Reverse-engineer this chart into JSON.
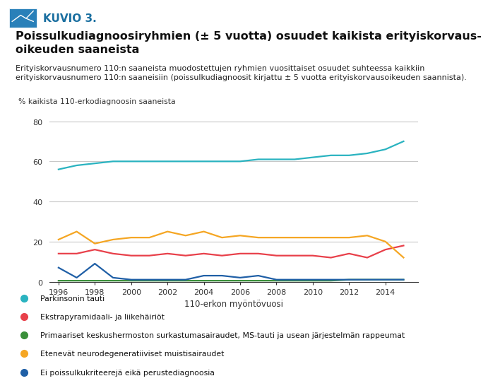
{
  "years": [
    1996,
    1997,
    1998,
    1999,
    2000,
    2001,
    2002,
    2003,
    2004,
    2005,
    2006,
    2007,
    2008,
    2009,
    2010,
    2011,
    2012,
    2013,
    2014,
    2015
  ],
  "parkinson": [
    56,
    58,
    59,
    60,
    60,
    60,
    60,
    60,
    60,
    60,
    60,
    61,
    61,
    61,
    62,
    63,
    63,
    64,
    66,
    70
  ],
  "ekstrapyramidaali": [
    14,
    14,
    16,
    14,
    13,
    13,
    14,
    13,
    14,
    13,
    14,
    14,
    13,
    13,
    13,
    12,
    14,
    12,
    16,
    18
  ],
  "primaariset": [
    0.5,
    0.5,
    0.5,
    0.5,
    0.5,
    0.5,
    0.5,
    0.5,
    0.5,
    0.5,
    0.5,
    0.5,
    0.5,
    0.5,
    0.5,
    0.5,
    1,
    1,
    1,
    1
  ],
  "etenevat": [
    21,
    25,
    19,
    21,
    22,
    22,
    25,
    23,
    25,
    22,
    23,
    22,
    22,
    22,
    22,
    22,
    22,
    23,
    20,
    12
  ],
  "ei_poissulku": [
    7,
    2,
    9,
    2,
    1,
    1,
    1,
    1,
    3,
    3,
    2,
    3,
    1,
    1,
    1,
    1,
    1,
    1,
    1,
    1
  ],
  "color_parkinson": "#2ab3c0",
  "color_ekstrapyramidaali": "#e8404a",
  "color_primaariset": "#3a8f3a",
  "color_etenevat": "#f5a623",
  "color_ei_poissulku": "#1f5fa6",
  "ylabel": "% kaikista 110-erkodiagnoosin saaneista",
  "xlabel": "110-erkon myöntövuosi",
  "ylim": [
    0,
    85
  ],
  "yticks": [
    0,
    20,
    40,
    60,
    80
  ],
  "xlim": [
    1995.5,
    2015.8
  ],
  "xticks": [
    1996,
    1998,
    2000,
    2002,
    2004,
    2006,
    2008,
    2010,
    2012,
    2014
  ],
  "legend_labels": [
    "Parkinsonin tauti",
    "Ekstrapyramidaali- ja liikehäiriöt",
    "Primaariset keskushermoston surkastumasairaudet, MS-tauti ja usean järjestelmän rappeumat",
    "Etenevät neurodegeneratiiviset muistisairaudet",
    "Ei poissulkukriteerejä eikä perustediagnoosia"
  ],
  "header_text": "KUVIO 3.",
  "title_text": "Poissulkudiagnoosiryhmien (± 5 vuotta) osuudet kaikista erityiskorvaus-\noikeuden saaneista",
  "subtitle_text": "Erityiskorvausnumero 110:n saaneista muodostettujen ryhmien vuosittaiset osuudet suhteessa kaikkiin erityiskorvausnumero 110:n saaneisiin (poissulkudiagnoosit kirjattu ± 5 vuotta erityiskorvausoikeuden saannista).",
  "background_color": "#ffffff",
  "grid_color": "#c8c8c8",
  "header_bg": "#d0e8f0",
  "header_color": "#1a6fa0"
}
